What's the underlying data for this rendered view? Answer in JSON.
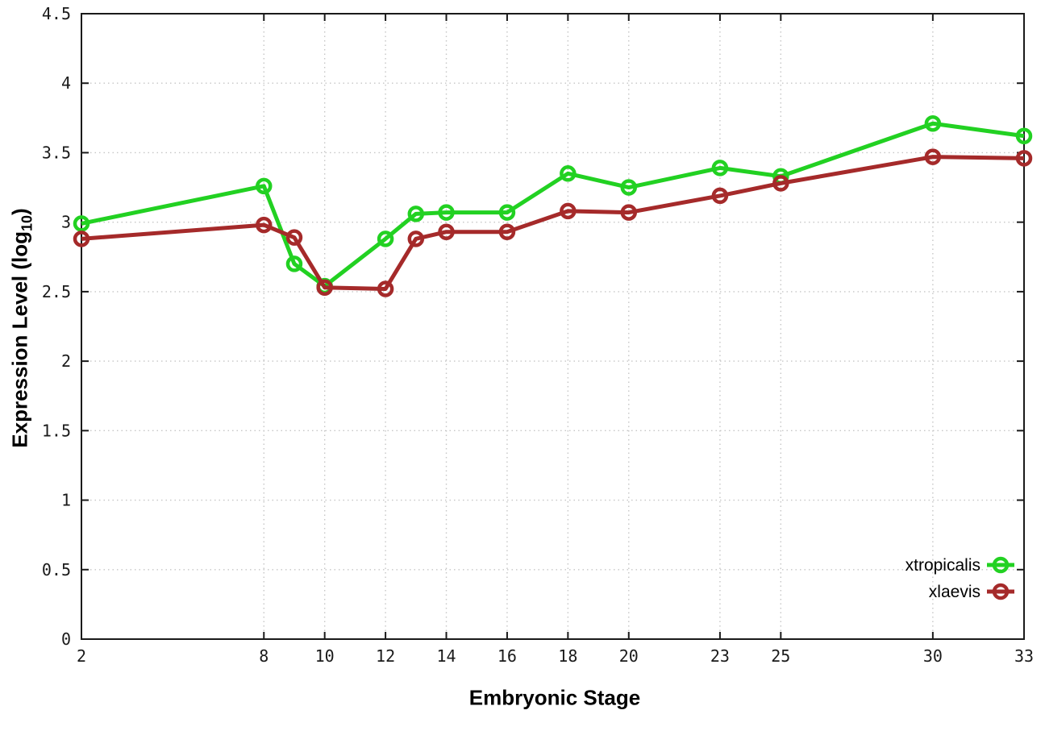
{
  "chart_data": {
    "type": "line",
    "xlabel": "Embryonic Stage",
    "ylabel_parts": {
      "main": "Expression Level (log",
      "sub": "10",
      "end": ")"
    },
    "x": [
      2,
      8,
      9,
      10,
      12,
      13,
      14,
      16,
      18,
      20,
      23,
      25,
      30,
      33
    ],
    "series": [
      {
        "name": "xtropicalis",
        "color": "#22d122",
        "values": [
          2.99,
          3.26,
          2.7,
          2.54,
          2.88,
          3.06,
          3.07,
          3.07,
          3.35,
          3.25,
          3.39,
          3.33,
          3.71,
          3.62
        ]
      },
      {
        "name": "xlaevis",
        "color": "#a52a2a",
        "values": [
          2.88,
          2.98,
          2.89,
          2.53,
          2.52,
          2.88,
          2.93,
          2.93,
          3.08,
          3.07,
          3.19,
          3.28,
          3.47,
          3.46
        ]
      }
    ],
    "xticks": [
      2,
      8,
      10,
      12,
      14,
      16,
      18,
      20,
      23,
      25,
      30,
      33
    ],
    "yticks": [
      0,
      0.5,
      1,
      1.5,
      2,
      2.5,
      3,
      3.5,
      4,
      4.5
    ],
    "xlim": [
      2,
      33
    ],
    "ylim": [
      0,
      4.5
    ],
    "grid": true,
    "legend_position": "inside-bottom-right",
    "style": {
      "grid_color": "#c6c6c6",
      "border_color": "#1a1a1a",
      "marker": "open-circle"
    }
  }
}
